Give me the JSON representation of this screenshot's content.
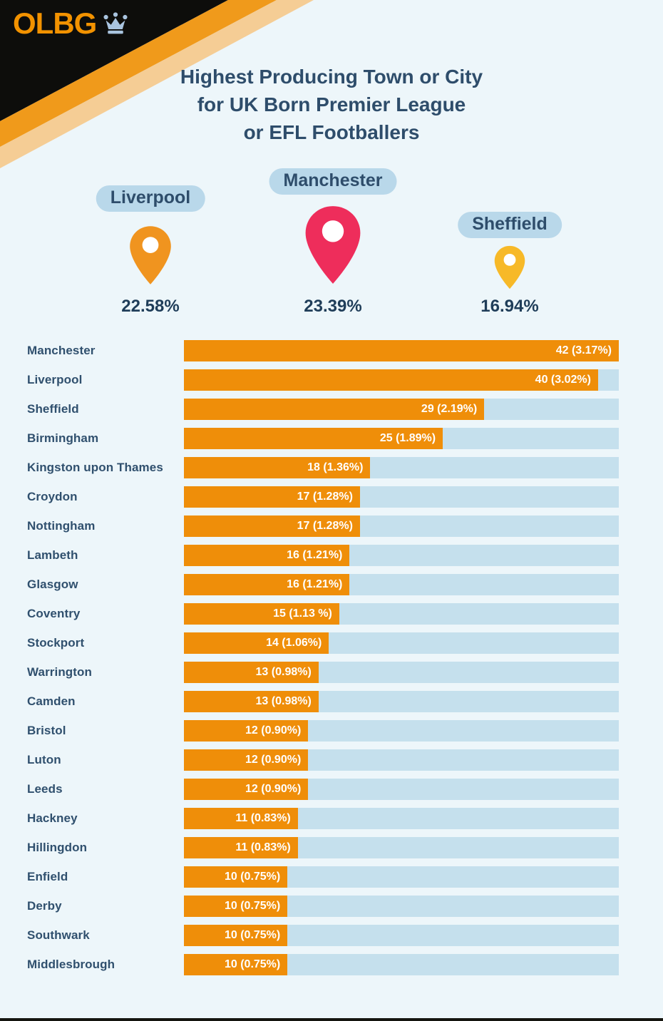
{
  "brand": {
    "logo_text": "OLBG",
    "crown_icon": "crown-icon"
  },
  "title": {
    "lines": [
      "Highest Producing Town or City",
      "for UK Born Premier League",
      "or EFL Footballers"
    ]
  },
  "colors": {
    "background": "#EDF6FA",
    "bar_orange": "#EF8E09",
    "bar_track": "#C5E0ED",
    "navy_text": "#2E4D6B",
    "pill_background": "#B9D8EA",
    "header_black": "#0D0D0B",
    "header_orange": "#F09A1B",
    "header_peach": "#F5CD95",
    "logo_orange": "#F29200",
    "crown_blue": "#A9C4DF"
  },
  "top_cities": [
    {
      "name": "Liverpool",
      "percent": "22.58%",
      "pin_color": "#F0941F",
      "pin_size": "medium"
    },
    {
      "name": "Manchester",
      "percent": "23.39%",
      "pin_color": "#EE2D5B",
      "pin_size": "large"
    },
    {
      "name": "Sheffield",
      "percent": "16.94%",
      "pin_color": "#F7B928",
      "pin_size": "small"
    }
  ],
  "chart_data": {
    "type": "bar",
    "orientation": "horizontal",
    "max_value": 42,
    "bar_color": "#EF8E09",
    "track_color": "#C5E0ED",
    "categories": [
      "Manchester",
      "Liverpool",
      "Sheffield",
      "Birmingham",
      "Kingston upon Thames",
      "Croydon",
      "Nottingham",
      "Lambeth",
      "Glasgow",
      "Coventry",
      "Stockport",
      "Warrington",
      "Camden",
      "Bristol",
      "Luton",
      "Leeds",
      "Hackney",
      "Hillingdon",
      "Enfield",
      "Derby",
      "Southwark",
      "Middlesbrough"
    ],
    "values": [
      42,
      40,
      29,
      25,
      18,
      17,
      17,
      16,
      16,
      15,
      14,
      13,
      13,
      12,
      12,
      12,
      11,
      11,
      10,
      10,
      10,
      10
    ],
    "value_labels": [
      "42 (3.17%)",
      "40 (3.02%)",
      "29 (2.19%)",
      "25 (1.89%)",
      "18 (1.36%)",
      "17 (1.28%)",
      "17 (1.28%)",
      "16 (1.21%)",
      "16 (1.21%)",
      "15 (1.13 %)",
      "14 (1.06%)",
      "13 (0.98%)",
      "13 (0.98%)",
      "12 (0.90%)",
      "12 (0.90%)",
      "12 (0.90%)",
      "11 (0.83%)",
      "11 (0.83%)",
      "10 (0.75%)",
      "10 (0.75%)",
      "10 (0.75%)",
      "10 (0.75%)"
    ]
  }
}
